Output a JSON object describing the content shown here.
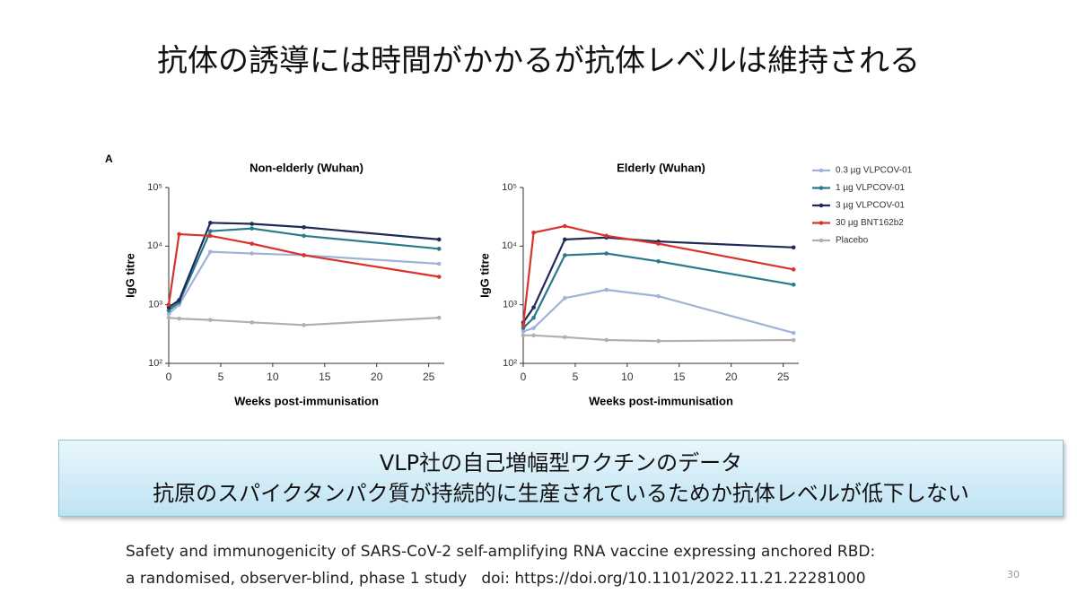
{
  "title": "抗体の誘導には時間がかかるが抗体レベルは維持される",
  "panel_label": "A",
  "chart_data": [
    {
      "type": "line",
      "title": "Non-elderly (Wuhan)",
      "xlabel": "Weeks post-immunisation",
      "ylabel": "IgG titre",
      "log_y": true,
      "xlim": [
        0,
        26.5
      ],
      "ylim": [
        100,
        100000
      ],
      "xticks": [
        0,
        5,
        10,
        15,
        20,
        25
      ],
      "yticks": [
        {
          "value": 100,
          "label": "10²"
        },
        {
          "value": 1000,
          "label": "10³"
        },
        {
          "value": 10000,
          "label": "10⁴"
        },
        {
          "value": 100000,
          "label": "10⁵"
        }
      ],
      "x": [
        0,
        1,
        4,
        8,
        13,
        26
      ],
      "series": [
        {
          "name": "0.3 µg VLPCOV-01",
          "color": "#9fb3d6",
          "values": [
            700,
            1000,
            8000,
            7500,
            7000,
            5000
          ]
        },
        {
          "name": "1 µg VLPCOV-01",
          "color": "#2a7a8c",
          "values": [
            800,
            1100,
            18000,
            20000,
            15000,
            9000
          ]
        },
        {
          "name": "3 µg VLPCOV-01",
          "color": "#1f2a55",
          "values": [
            900,
            1200,
            25000,
            24000,
            21000,
            13000
          ]
        },
        {
          "name": "30 µg BNT162b2",
          "color": "#d9342b",
          "values": [
            1000,
            16000,
            15000,
            11000,
            7000,
            3000
          ]
        },
        {
          "name": "Placebo",
          "color": "#b0b0b0",
          "values": [
            600,
            580,
            550,
            500,
            450,
            600
          ]
        }
      ]
    },
    {
      "type": "line",
      "title": "Elderly (Wuhan)",
      "xlabel": "Weeks post-immunisation",
      "ylabel": "IgG titre",
      "log_y": true,
      "xlim": [
        0,
        26.5
      ],
      "ylim": [
        100,
        100000
      ],
      "xticks": [
        0,
        5,
        10,
        15,
        20,
        25
      ],
      "yticks": [
        {
          "value": 100,
          "label": "10²"
        },
        {
          "value": 1000,
          "label": "10³"
        },
        {
          "value": 10000,
          "label": "10⁴"
        },
        {
          "value": 100000,
          "label": "10⁵"
        }
      ],
      "x": [
        0,
        1,
        4,
        8,
        13,
        26
      ],
      "series": [
        {
          "color": "#9fb3d6",
          "values": [
            350,
            400,
            1300,
            1800,
            1400,
            330
          ]
        },
        {
          "color": "#2a7a8c",
          "values": [
            400,
            600,
            7000,
            7500,
            5500,
            2200
          ]
        },
        {
          "color": "#1f2a55",
          "values": [
            500,
            900,
            13000,
            14000,
            12000,
            9500
          ]
        },
        {
          "color": "#d9342b",
          "values": [
            450,
            17000,
            22000,
            15000,
            11000,
            4000
          ]
        },
        {
          "color": "#b0b0b0",
          "values": [
            300,
            300,
            280,
            250,
            240,
            250
          ]
        }
      ]
    }
  ],
  "callout": [
    "VLP社の自己増幅型ワクチンのデータ",
    "抗原のスパイクタンパク質が持続的に生産されているためか抗体レベルが低下しない"
  ],
  "citation": [
    "Safety and immunogenicity of SARS-CoV-2 self-amplifying RNA vaccine expressing anchored RBD:",
    "a randomised, observer-blind, phase 1 study   doi: https://doi.org/10.1101/2022.11.21.22281000"
  ],
  "page_number": "30"
}
